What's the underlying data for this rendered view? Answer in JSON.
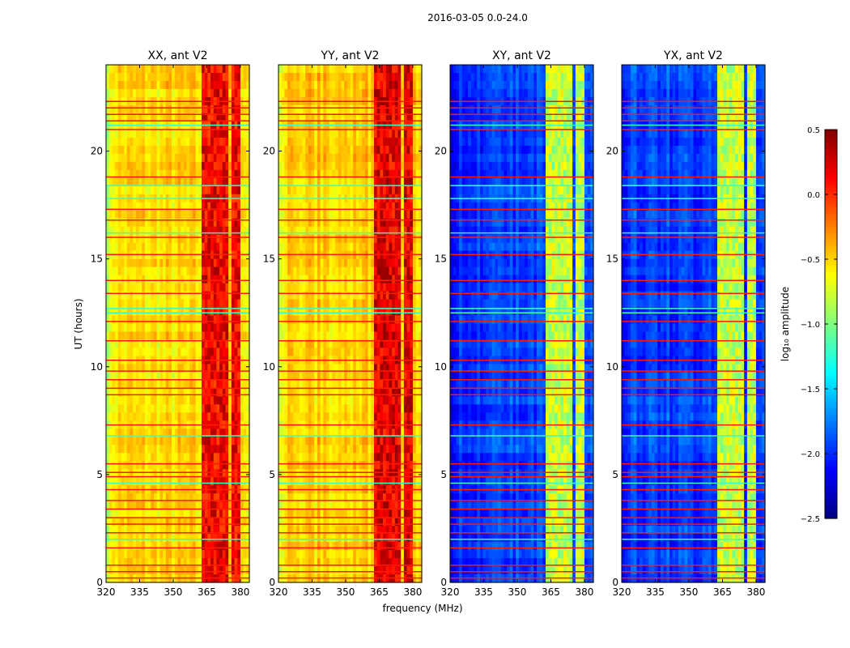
{
  "suptitle": "2016-03-05 0.0-24.0",
  "chart_data": {
    "type": "heatmap",
    "ylabel": "UT (hours)",
    "xlabel": "frequency (MHz)",
    "xlim": [
      320,
      384
    ],
    "ylim": [
      0,
      24
    ],
    "xticks": [
      "320",
      "335",
      "350",
      "365",
      "380"
    ],
    "xtick_values": [
      320,
      335,
      350,
      365,
      380
    ],
    "yticks": [
      "0",
      "5",
      "10",
      "15",
      "20"
    ],
    "ytick_values": [
      0,
      5,
      10,
      15,
      20
    ],
    "bright_bands_mhz": [
      [
        363,
        366.5
      ],
      [
        367,
        370
      ],
      [
        371,
        374
      ],
      [
        375.5,
        379.5
      ]
    ],
    "rfi_hours": [
      0.2,
      0.5,
      0.8,
      1.6,
      2.3,
      2.7,
      3.0,
      3.4,
      3.8,
      4.3,
      4.9,
      5.1,
      5.5,
      7.3,
      8.7,
      9.0,
      9.4,
      9.8,
      10.3,
      11.2,
      12.1,
      13.4,
      14.0,
      15.2,
      16.0,
      16.8,
      17.3,
      18.8,
      21.0,
      21.4,
      21.7,
      22.0,
      22.3
    ],
    "cyan_hours": [
      2.0,
      4.6,
      6.8,
      12.5,
      12.7,
      16.2,
      17.8,
      18.4,
      21.2
    ],
    "panels": [
      {
        "title": "XX, ant V2",
        "base_log_amp": -0.55,
        "band_log_amp": 0.05
      },
      {
        "title": "YY, ant V2",
        "base_log_amp": -0.5,
        "band_log_amp": 0.1
      },
      {
        "title": "XY, ant V2",
        "base_log_amp": -1.95,
        "band_log_amp": -0.9
      },
      {
        "title": "YX, ant V2",
        "base_log_amp": -1.95,
        "band_log_amp": -0.9
      }
    ],
    "colorbar": {
      "label": "log₁₀ amplitude",
      "range": [
        -2.5,
        0.5
      ],
      "ticks": [
        "0.5",
        "0.0",
        "−0.5",
        "−1.0",
        "−1.5",
        "−2.0",
        "−2.5"
      ],
      "tick_values": [
        0.5,
        0.0,
        -0.5,
        -1.0,
        -1.5,
        -2.0,
        -2.5
      ],
      "colormap": "jet"
    }
  }
}
